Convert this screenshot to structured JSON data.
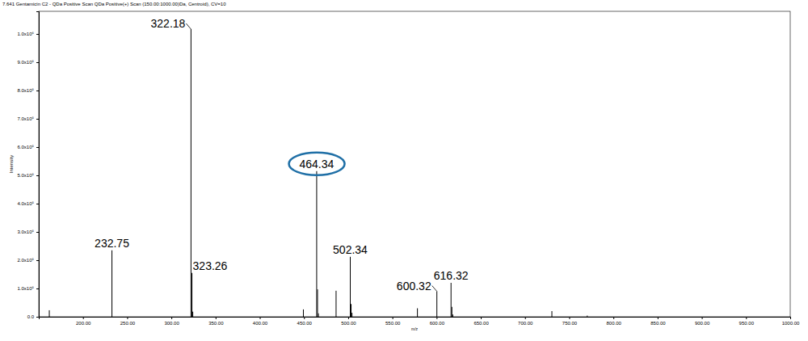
{
  "chart_data": {
    "type": "stick",
    "title": "7.641 Gentamicin C2 - QDa Positive Scan QDa Positive(+) Scan (150.00:1000.00)Da, Centroid), CV=10",
    "x_label": "m/z",
    "y_label": "Intensity",
    "color": "#000000",
    "x": [
      161.9,
      232.75,
      322.18,
      323.26,
      324.2,
      449.3,
      464.34,
      465.3,
      466.3,
      486.3,
      502.34,
      503.3,
      504.3,
      578.3,
      600.32,
      616.32,
      617.3,
      618.3,
      730.4,
      770.4
    ],
    "values": [
      23000,
      235000,
      1017000,
      155000,
      18000,
      26000,
      515000,
      97000,
      12000,
      92000,
      212000,
      45000,
      14000,
      30000,
      90000,
      120000,
      35000,
      8000,
      20000,
      4000
    ],
    "xlim": [
      150,
      1000
    ],
    "ylim": [
      0,
      1080000
    ],
    "xticks": [
      {
        "value": 200,
        "label": "200.00"
      },
      {
        "value": 250,
        "label": "250.00"
      },
      {
        "value": 300,
        "label": "300.00"
      },
      {
        "value": 350,
        "label": "350.00"
      },
      {
        "value": 400,
        "label": "400.00"
      },
      {
        "value": 450,
        "label": "450.00"
      },
      {
        "value": 500,
        "label": "500.00"
      },
      {
        "value": 550,
        "label": "550.00"
      },
      {
        "value": 600,
        "label": "600.00"
      },
      {
        "value": 650,
        "label": "650.00"
      },
      {
        "value": 700,
        "label": "700.00"
      },
      {
        "value": 750,
        "label": "750.00"
      },
      {
        "value": 800,
        "label": "800.00"
      },
      {
        "value": 850,
        "label": "850.00"
      },
      {
        "value": 900,
        "label": "900.00"
      },
      {
        "value": 950,
        "label": "950.00"
      },
      {
        "value": 1000,
        "label": "1000.00"
      }
    ],
    "yticks": [
      {
        "value": 0,
        "label": "0.0"
      },
      {
        "value": 100000,
        "label": "1.0x10⁵"
      },
      {
        "value": 200000,
        "label": "2.0x10⁵"
      },
      {
        "value": 300000,
        "label": "3.0x10⁵"
      },
      {
        "value": 400000,
        "label": "4.0x10⁵"
      },
      {
        "value": 500000,
        "label": "5.0x10⁵"
      },
      {
        "value": 600000,
        "label": "6.0x10⁵"
      },
      {
        "value": 700000,
        "label": "7.0x10⁵"
      },
      {
        "value": 800000,
        "label": "8.0x10⁵"
      },
      {
        "value": 900000,
        "label": "9.0x10⁵"
      },
      {
        "value": 1000000,
        "label": "1.0x10⁶"
      }
    ],
    "annotations": [
      {
        "x": 232.75,
        "y": 235000,
        "text": "232.75"
      },
      {
        "x": 322.18,
        "y": 1017000,
        "text": "322.18"
      },
      {
        "x": 323.26,
        "y": 155000,
        "text": "323.26"
      },
      {
        "x": 464.34,
        "y": 515000,
        "text": "464.34",
        "marker": "circle"
      },
      {
        "x": 502.34,
        "y": 212000,
        "text": "502.34"
      },
      {
        "x": 600.32,
        "y": 90000,
        "text": "600.32"
      },
      {
        "x": 616.32,
        "y": 120000,
        "text": "616.32"
      }
    ]
  }
}
